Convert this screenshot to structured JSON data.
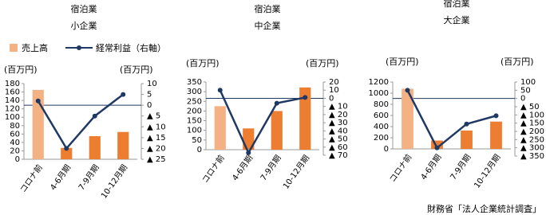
{
  "chart_data": [
    {
      "type": "bar-line",
      "title": "宿泊業",
      "subtitle": "小企業",
      "y_label": "(百万円)",
      "y2_label": "(百万円)",
      "categories": [
        "コロナ前",
        "4-6月期",
        "7-9月期",
        "10-12月期"
      ],
      "series": [
        {
          "name": "売上高",
          "type": "bar",
          "color": "#ed7d31",
          "colors": [
            "#f4b183",
            "#ed7d31",
            "#ed7d31",
            "#ed7d31"
          ],
          "values": [
            165,
            27,
            55,
            65
          ]
        },
        {
          "name": "経常利益（右軸）",
          "type": "line",
          "axis": "y2",
          "color": "#1f3864",
          "values": [
            2,
            -20,
            -5,
            5
          ]
        }
      ],
      "ylim": [
        0,
        180
      ],
      "yticks": [
        0,
        20,
        40,
        60,
        80,
        100,
        120,
        140,
        160,
        180
      ],
      "y2lim": [
        -25,
        10
      ],
      "y2ticks": [
        10,
        5,
        0,
        {
          "value": -5,
          "label": "▲ 5"
        },
        {
          "value": -10,
          "label": "▲ 10"
        },
        {
          "value": -15,
          "label": "▲ 15"
        },
        {
          "value": -20,
          "label": "▲ 20"
        },
        {
          "value": -25,
          "label": "▲ 25"
        }
      ]
    },
    {
      "type": "bar-line",
      "title": "宿泊業",
      "subtitle": "中企業",
      "y_label": "(百万円)",
      "y2_label": "(百万円)",
      "categories": [
        "コロナ前",
        "4-6月期",
        "7-9月期",
        "10-12月期"
      ],
      "series": [
        {
          "type": "bar",
          "color": "#ed7d31",
          "colors": [
            "#f4b183",
            "#ed7d31",
            "#ed7d31",
            "#ed7d31"
          ],
          "values": [
            225,
            110,
            200,
            322
          ]
        },
        {
          "type": "line",
          "axis": "y2",
          "color": "#1f3864",
          "values": [
            10,
            -67,
            -6,
            1
          ]
        }
      ],
      "ylim": [
        0,
        350
      ],
      "yticks": [
        0,
        50,
        100,
        150,
        200,
        250,
        300,
        350
      ],
      "y2lim": [
        -70,
        20
      ],
      "y2ticks": [
        20,
        10,
        0,
        {
          "value": -10,
          "label": "▲ 10"
        },
        {
          "value": -20,
          "label": "▲ 20"
        },
        {
          "value": -30,
          "label": "▲ 30"
        },
        {
          "value": -40,
          "label": "▲ 40"
        },
        {
          "value": -50,
          "label": "▲ 50"
        },
        {
          "value": -60,
          "label": "▲ 60"
        },
        {
          "value": -70,
          "label": "▲ 70"
        }
      ]
    },
    {
      "type": "bar-line",
      "title": "宿泊業",
      "subtitle": "大企業",
      "y_label": "(百万円)",
      "y2_label": "(百万円)",
      "categories": [
        "コロナ前",
        "4-6月期",
        "7-9月期",
        "10-12月期"
      ],
      "series": [
        {
          "type": "bar",
          "color": "#ed7d31",
          "colors": [
            "#f4b183",
            "#ed7d31",
            "#ed7d31",
            "#ed7d31"
          ],
          "values": [
            1080,
            150,
            330,
            490
          ]
        },
        {
          "type": "line",
          "axis": "y2",
          "color": "#1f3864",
          "values": [
            50,
            -300,
            -155,
            -105
          ]
        }
      ],
      "ylim": [
        0,
        1200
      ],
      "yticks": [
        0,
        200,
        400,
        600,
        800,
        1000,
        1200
      ],
      "y2lim": [
        -350,
        100
      ],
      "y2ticks": [
        100,
        50,
        0,
        {
          "value": -50,
          "label": "▲ 50"
        },
        {
          "value": -100,
          "label": "▲ 100"
        },
        {
          "value": -150,
          "label": "▲ 150"
        },
        {
          "value": -200,
          "label": "▲ 200"
        },
        {
          "value": -250,
          "label": "▲ 250"
        },
        {
          "value": -300,
          "label": "▲ 300"
        },
        {
          "value": -350,
          "label": "▲ 350"
        }
      ]
    }
  ],
  "source": "財務省「法人企業統計調査」"
}
